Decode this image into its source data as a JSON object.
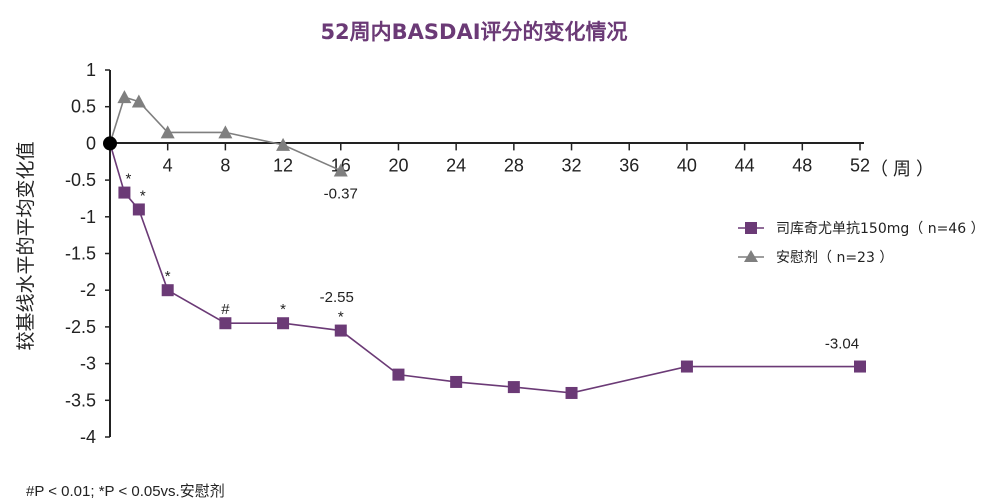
{
  "chart_data": {
    "type": "line",
    "title": "52周内BASDAI评分的变化情况",
    "ylabel": "较基线水平的平均变化值",
    "xunit": "（ 周 ）",
    "xlim": [
      0,
      52
    ],
    "ylim": [
      -4,
      1
    ],
    "xticks": [
      "4",
      "8",
      "12",
      "16",
      "20",
      "24",
      "28",
      "32",
      "36",
      "40",
      "44",
      "48",
      "52"
    ],
    "yticks": [
      "1",
      "0.5",
      "0",
      "-0.5",
      "-1",
      "-1.5",
      "-2",
      "-2.5",
      "-3",
      "-3.5",
      "-4"
    ],
    "origin": {
      "x": 0,
      "y": 0
    },
    "series": [
      {
        "name": "司库奇尤单抗150mg（ n=46 ）",
        "color": "#6b3a76",
        "marker": "square",
        "x": [
          0,
          1,
          2,
          4,
          8,
          12,
          16,
          20,
          24,
          28,
          32,
          40,
          52
        ],
        "y": [
          0,
          -0.67,
          -0.9,
          -2.0,
          -2.45,
          -2.45,
          -2.55,
          -3.15,
          -3.25,
          -3.32,
          -3.4,
          -3.04,
          -3.04
        ],
        "marks": [
          "",
          "*",
          "*",
          "*",
          "#",
          "*",
          "*",
          "",
          "",
          "",
          "",
          "",
          ""
        ]
      },
      {
        "name": "安慰剂（ n=23 ）",
        "color": "#7f7f7f",
        "marker": "triangle",
        "x": [
          0,
          1,
          2,
          4,
          8,
          12,
          16
        ],
        "y": [
          0,
          0.63,
          0.57,
          0.15,
          0.15,
          -0.02,
          -0.37
        ]
      }
    ],
    "annotations": [
      {
        "text": "-0.37",
        "x": 16,
        "y": -0.37
      },
      {
        "text": "-2.55",
        "x": 16,
        "y": -2.55
      },
      {
        "text": "-3.04",
        "x": 52,
        "y": -3.04
      }
    ],
    "legend": "right"
  },
  "footnote": "#P < 0.01; *P < 0.05vs.安慰剂"
}
